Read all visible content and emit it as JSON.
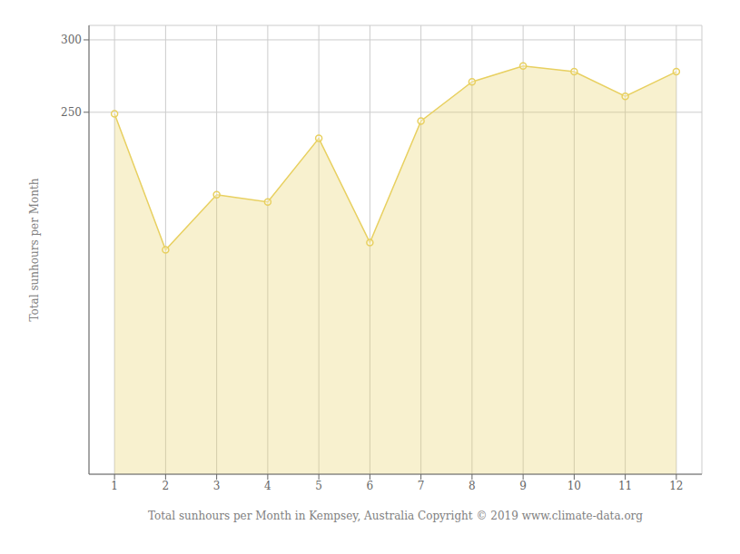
{
  "chart_data": {
    "type": "area",
    "x": [
      1,
      2,
      3,
      4,
      5,
      6,
      7,
      8,
      9,
      10,
      11,
      12
    ],
    "values": [
      249,
      155,
      193,
      188,
      232,
      160,
      244,
      271,
      282,
      278,
      261,
      278
    ],
    "xlabel": "Total sunhours per Month in Kempsey, Australia Copyright © 2019 www.climate-data.org",
    "ylabel": "Total sunhours per Month",
    "xlim": [
      0.5,
      12.5
    ],
    "xticks": [
      1,
      2,
      3,
      4,
      5,
      6,
      7,
      8,
      9,
      10,
      11,
      12
    ],
    "ylim": [
      0,
      310
    ],
    "yticks": [
      250,
      300
    ],
    "grid": true,
    "color": "#e8d060",
    "marker": "circle"
  }
}
